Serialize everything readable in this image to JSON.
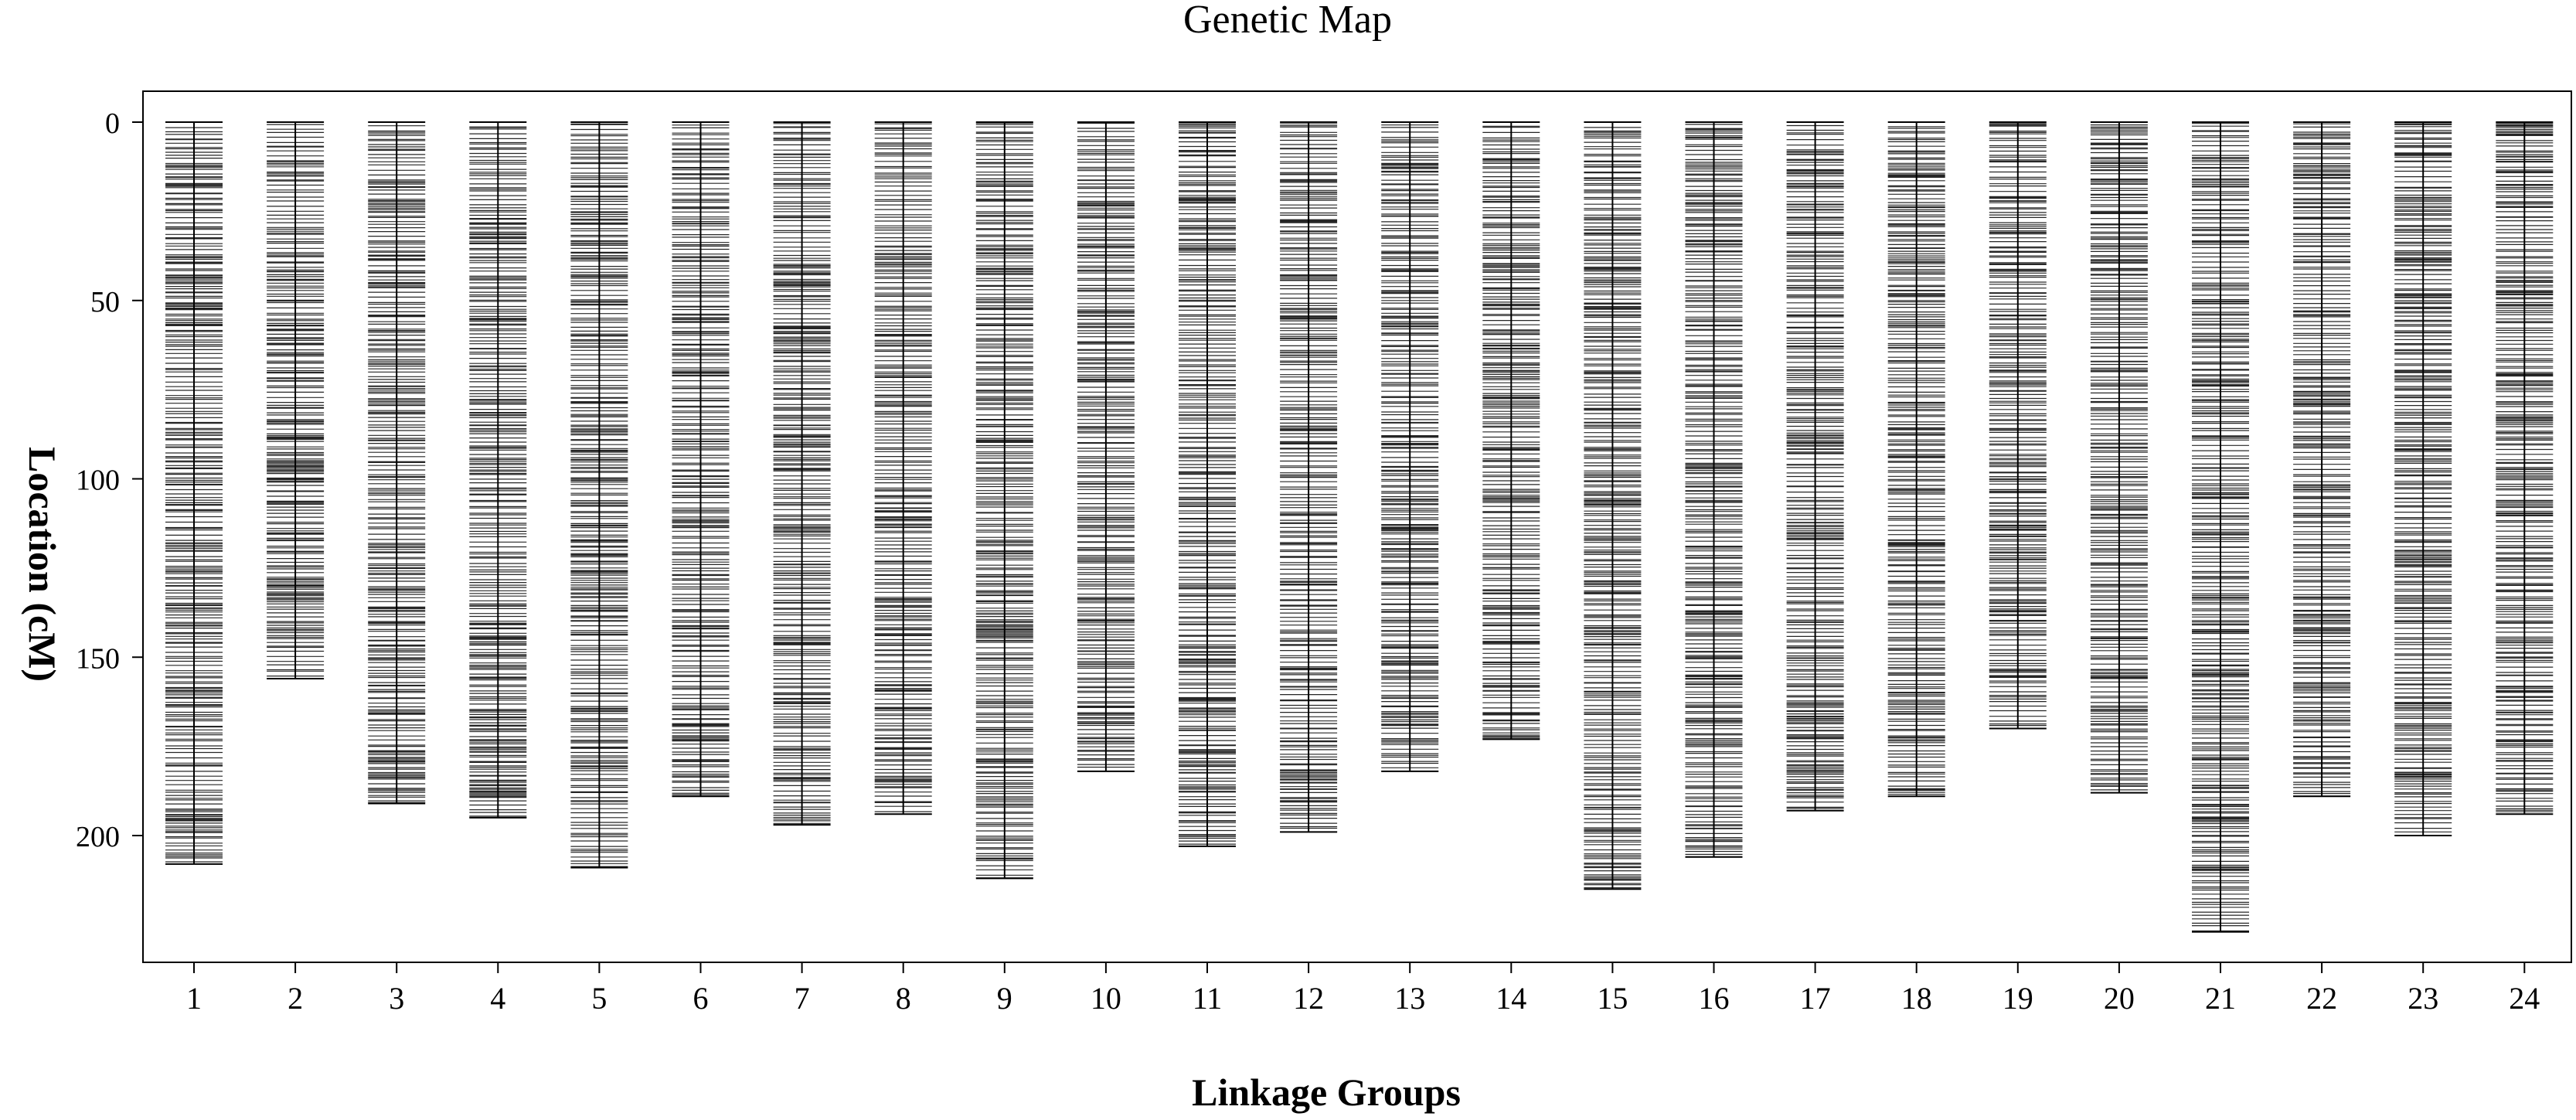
{
  "chart_data": {
    "type": "genetic-map",
    "title": "Genetic Map",
    "xlabel": "Linkage Groups",
    "ylabel": "Location (cM)",
    "yticks": [
      0,
      50,
      100,
      150,
      200
    ],
    "ylim": [
      0,
      235
    ],
    "y_direction": "downward",
    "grid": false,
    "legend": "none",
    "marker_color": "#000000",
    "groups": [
      {
        "label": "1",
        "length": 208,
        "start": 0
      },
      {
        "label": "2",
        "length": 156,
        "start": 0
      },
      {
        "label": "3",
        "length": 191,
        "start": 0
      },
      {
        "label": "4",
        "length": 195,
        "start": 0
      },
      {
        "label": "5",
        "length": 209,
        "start": 0
      },
      {
        "label": "6",
        "length": 189,
        "start": 0
      },
      {
        "label": "7",
        "length": 197,
        "start": 0
      },
      {
        "label": "8",
        "length": 194,
        "start": 0
      },
      {
        "label": "9",
        "length": 212,
        "start": 0
      },
      {
        "label": "10",
        "length": 182,
        "start": 0
      },
      {
        "label": "11",
        "length": 203,
        "start": 0
      },
      {
        "label": "12",
        "length": 199,
        "start": 0
      },
      {
        "label": "13",
        "length": 182,
        "start": 0
      },
      {
        "label": "14",
        "length": 173,
        "start": 0
      },
      {
        "label": "15",
        "length": 215,
        "start": 0
      },
      {
        "label": "16",
        "length": 206,
        "start": 0
      },
      {
        "label": "17",
        "length": 193,
        "start": 0
      },
      {
        "label": "18",
        "length": 189,
        "start": 0
      },
      {
        "label": "19",
        "length": 170,
        "start": 0
      },
      {
        "label": "20",
        "length": 188,
        "start": 0
      },
      {
        "label": "21",
        "length": 227,
        "start": 0
      },
      {
        "label": "22",
        "length": 189,
        "start": 0
      },
      {
        "label": "23",
        "length": 200,
        "start": 0
      },
      {
        "label": "24",
        "length": 194,
        "start": 0
      }
    ]
  }
}
